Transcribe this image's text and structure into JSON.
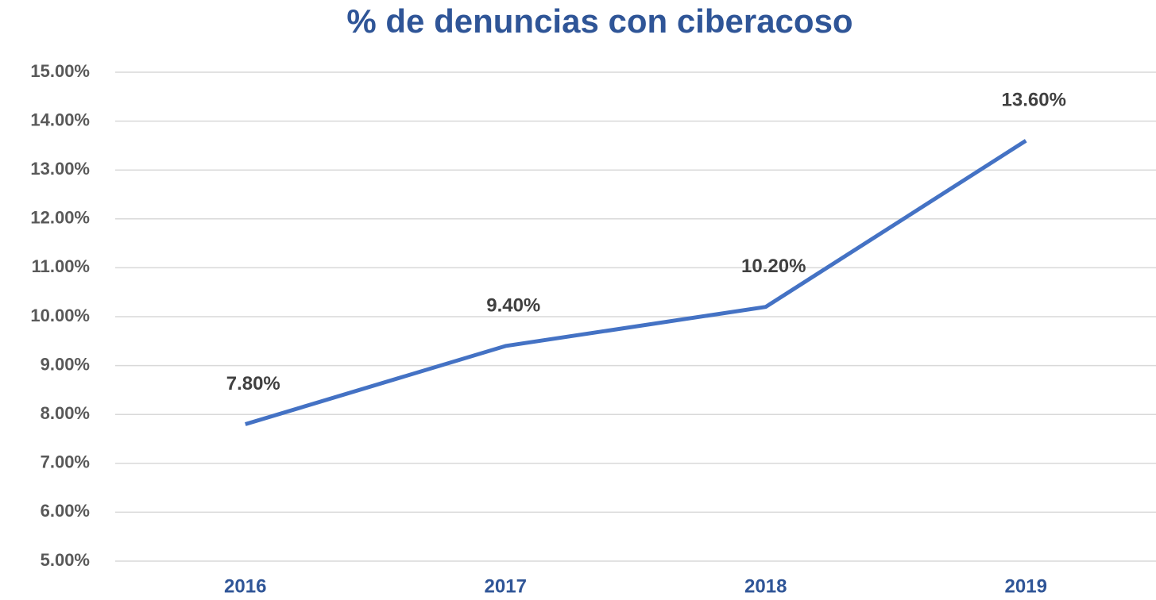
{
  "chart_data": {
    "type": "line",
    "title": "% de denuncias con ciberacoso",
    "categories": [
      "2016",
      "2017",
      "2018",
      "2019"
    ],
    "series": [
      {
        "name": "% de denuncias con ciberacoso",
        "color": "#4472c4",
        "values": [
          7.8,
          9.4,
          10.2,
          13.6
        ],
        "value_labels": [
          "7.80%",
          "9.40%",
          "10.20%",
          "13.60%"
        ]
      }
    ],
    "ylim": [
      5,
      15
    ],
    "yticks": [
      {
        "value": 5,
        "label": "5.00%"
      },
      {
        "value": 6,
        "label": "6.00%"
      },
      {
        "value": 7,
        "label": "7.00%"
      },
      {
        "value": 8,
        "label": "8.00%"
      },
      {
        "value": 9,
        "label": "9.00%"
      },
      {
        "value": 10,
        "label": "10.00%"
      },
      {
        "value": 11,
        "label": "11.00%"
      },
      {
        "value": 12,
        "label": "12.00%"
      },
      {
        "value": 13,
        "label": "13.00%"
      },
      {
        "value": 14,
        "label": "14.00%"
      },
      {
        "value": 15,
        "label": "15.00%"
      }
    ],
    "grid": true
  }
}
